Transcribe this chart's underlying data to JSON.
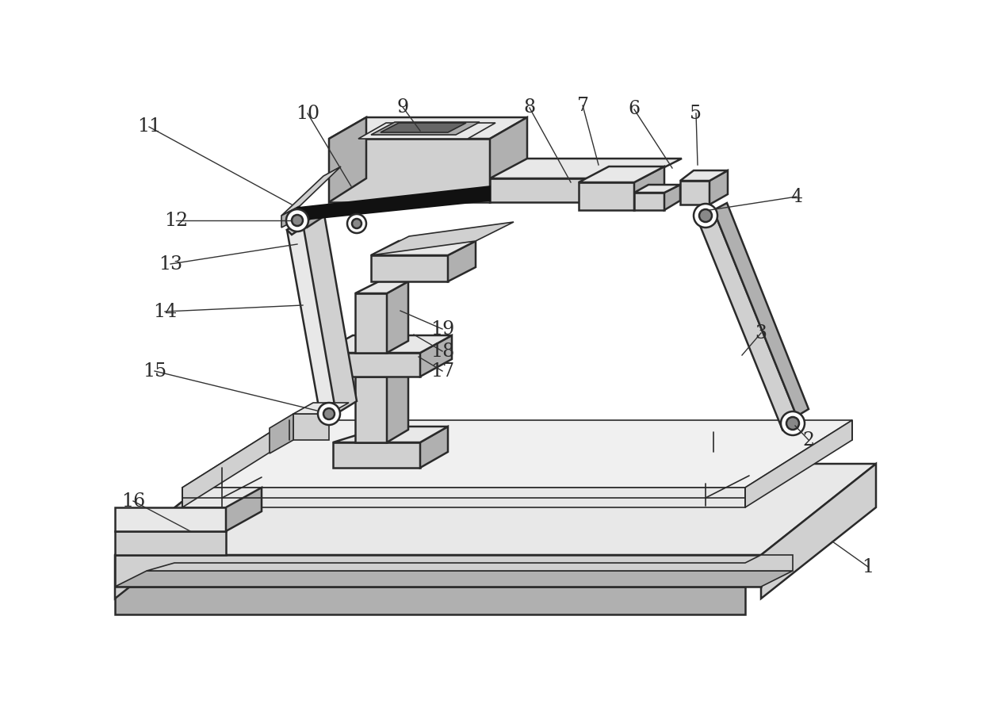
{
  "bg_color": "#ffffff",
  "line_color": "#2a2a2a",
  "lw_thick": 1.8,
  "lw_thin": 1.2,
  "gray_light": "#e8e8e8",
  "gray_mid": "#d0d0d0",
  "gray_dark": "#b0b0b0",
  "gray_darkest": "#888888",
  "white": "#ffffff",
  "black": "#111111",
  "label_fs": 17,
  "annotations": [
    [
      "1",
      1095,
      715
    ],
    [
      "2",
      1020,
      555
    ],
    [
      "3",
      960,
      420
    ],
    [
      "4",
      1005,
      248
    ],
    [
      "5",
      878,
      143
    ],
    [
      "6",
      800,
      138
    ],
    [
      "7",
      735,
      133
    ],
    [
      "8",
      668,
      136
    ],
    [
      "9",
      508,
      135
    ],
    [
      "10",
      388,
      143
    ],
    [
      "11",
      188,
      160
    ],
    [
      "12",
      222,
      278
    ],
    [
      "13",
      215,
      333
    ],
    [
      "14",
      208,
      393
    ],
    [
      "15",
      195,
      468
    ],
    [
      "16",
      168,
      632
    ],
    [
      "17",
      558,
      468
    ],
    [
      "18",
      558,
      443
    ],
    [
      "19",
      558,
      415
    ]
  ],
  "leader_lines": [
    [
      1095,
      715,
      1050,
      683
    ],
    [
      1020,
      555,
      1003,
      537
    ],
    [
      960,
      420,
      936,
      448
    ],
    [
      1005,
      248,
      895,
      265
    ],
    [
      878,
      143,
      880,
      208
    ],
    [
      800,
      138,
      848,
      212
    ],
    [
      735,
      133,
      755,
      208
    ],
    [
      668,
      136,
      720,
      230
    ],
    [
      508,
      135,
      530,
      165
    ],
    [
      388,
      143,
      443,
      235
    ],
    [
      188,
      160,
      368,
      258
    ],
    [
      222,
      278,
      368,
      278
    ],
    [
      215,
      333,
      375,
      308
    ],
    [
      208,
      393,
      382,
      385
    ],
    [
      195,
      468,
      400,
      518
    ],
    [
      168,
      632,
      240,
      670
    ],
    [
      558,
      468,
      528,
      450
    ],
    [
      558,
      443,
      522,
      422
    ],
    [
      558,
      415,
      505,
      392
    ]
  ]
}
